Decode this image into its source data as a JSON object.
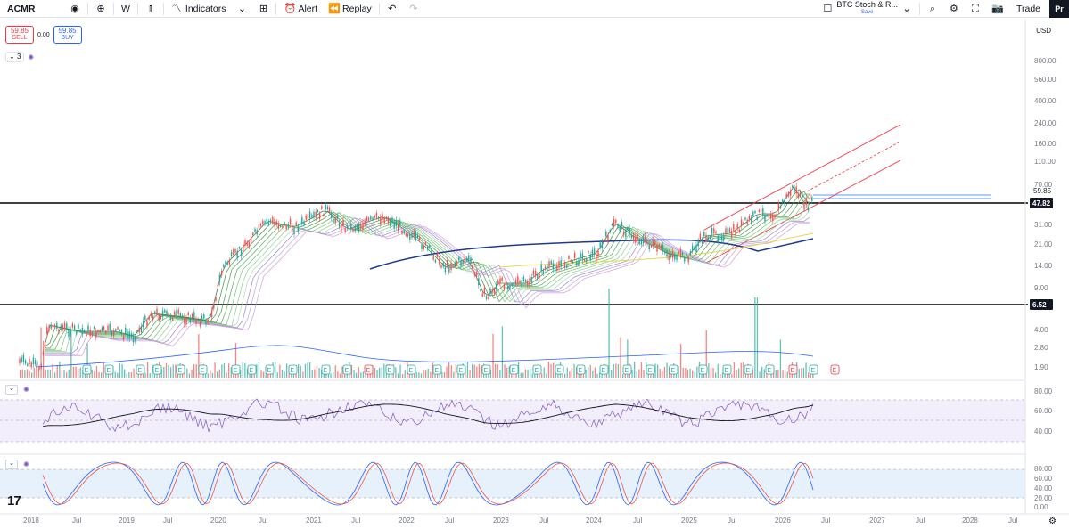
{
  "toolbar": {
    "symbol": "ACMR",
    "interval": "W",
    "indicators_label": "Indicators",
    "alert_label": "Alert",
    "replay_label": "Replay",
    "layout_name": "BTC Stoch & R...",
    "layout_save": "Save",
    "trade_label": "Trade",
    "pro_label": "Pr"
  },
  "order": {
    "sell_price": "59.85",
    "sell_label": "SELL",
    "spread": "0.00",
    "buy_price": "59.85",
    "buy_label": "BUY"
  },
  "indicator_count": "3",
  "currency": "USD",
  "price_axis": [
    "800.00",
    "560.00",
    "400.00",
    "240.00",
    "160.00",
    "110.00",
    "70.00",
    "31.00",
    "21.00",
    "14.00",
    "9.00",
    "4.00",
    "2.80",
    "1.90"
  ],
  "price_labels": {
    "last": "59.85",
    "level_high": "47.82",
    "level_low": "6.52"
  },
  "rsi_axis": [
    "80.00",
    "60.00",
    "40.00"
  ],
  "stoch_axis": [
    "80.00",
    "60.00",
    "40.00",
    "20.00",
    "0.00"
  ],
  "time_axis": [
    "2018",
    "Jul",
    "2019",
    "Jul",
    "2020",
    "Jul",
    "2021",
    "Jul",
    "2022",
    "Jul",
    "2023",
    "Jul",
    "2024",
    "Jul",
    "2025",
    "Jul",
    "2026",
    "Jul",
    "2027",
    "Jul",
    "2028",
    "Jul"
  ],
  "earnings_marker": "E",
  "colors": {
    "up": "#26a69a",
    "down": "#ef5350",
    "rsi_fill": "#f3eefb",
    "stoch_fill": "#e6f1fb"
  }
}
